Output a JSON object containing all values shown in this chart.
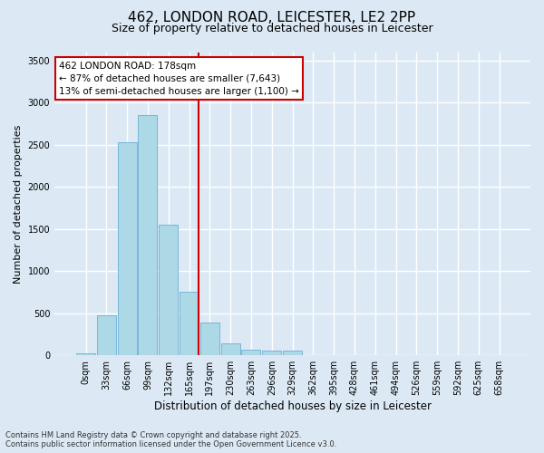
{
  "title_line1": "462, LONDON ROAD, LEICESTER, LE2 2PP",
  "title_line2": "Size of property relative to detached houses in Leicester",
  "xlabel": "Distribution of detached houses by size in Leicester",
  "ylabel": "Number of detached properties",
  "bin_labels": [
    "0sqm",
    "33sqm",
    "66sqm",
    "99sqm",
    "132sqm",
    "165sqm",
    "197sqm",
    "230sqm",
    "263sqm",
    "296sqm",
    "329sqm",
    "362sqm",
    "395sqm",
    "428sqm",
    "461sqm",
    "494sqm",
    "526sqm",
    "559sqm",
    "592sqm",
    "625sqm",
    "658sqm"
  ],
  "bar_values": [
    20,
    475,
    2530,
    2850,
    1550,
    750,
    390,
    140,
    70,
    55,
    55,
    0,
    0,
    0,
    0,
    0,
    0,
    0,
    0,
    0,
    0
  ],
  "bar_color": "#add8e6",
  "bar_edge_color": "#6baed6",
  "vline_index": 5,
  "vline_color": "#cc0000",
  "annotation_text": "462 LONDON ROAD: 178sqm\n← 87% of detached houses are smaller (7,643)\n13% of semi-detached houses are larger (1,100) →",
  "annotation_box_color": "#cc0000",
  "annotation_bg": "white",
  "ylim": [
    0,
    3600
  ],
  "yticks": [
    0,
    500,
    1000,
    1500,
    2000,
    2500,
    3000,
    3500
  ],
  "footer_line1": "Contains HM Land Registry data © Crown copyright and database right 2025.",
  "footer_line2": "Contains public sector information licensed under the Open Government Licence v3.0.",
  "background_color": "#dce9f5",
  "grid_color": "white",
  "title1_fontsize": 11,
  "title2_fontsize": 9,
  "ylabel_fontsize": 8,
  "xlabel_fontsize": 8.5,
  "tick_fontsize": 7,
  "annot_fontsize": 7.5,
  "footer_fontsize": 6
}
